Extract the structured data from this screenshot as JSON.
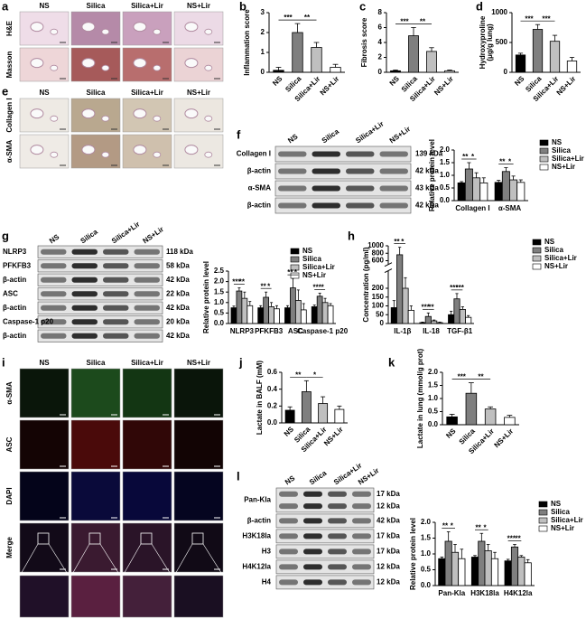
{
  "figure": {
    "a": {
      "letter": "a",
      "columns": [
        "NS",
        "Silica",
        "Silica+Lir",
        "NS+Lir"
      ],
      "rows": [
        "H&E",
        "Masson"
      ]
    },
    "e": {
      "letter": "e",
      "columns": [
        "NS",
        "Silica",
        "Silica+Lir",
        "NS+Lir"
      ],
      "rows": [
        "Collagen I",
        "α-SMA"
      ]
    },
    "f": {
      "letter": "f",
      "lanes": [
        "NS",
        "Silica",
        "Silica+Lir",
        "NS+Lir"
      ],
      "rows": [
        {
          "label": "Collagen I",
          "kda": [
            "139 kDa"
          ]
        },
        {
          "label": "β-actin",
          "kda": [
            "42 kDa"
          ]
        },
        {
          "label": "α-SMA",
          "kda": [
            "43 kDa"
          ]
        },
        {
          "label": "β-actin",
          "kda": [
            "42 kDa"
          ]
        }
      ]
    },
    "g": {
      "letter": "g",
      "lanes": [
        "NS",
        "Silica",
        "Silica+Lir",
        "NS+Lir"
      ],
      "rows": [
        {
          "label": "NLRP3",
          "kda": [
            "118 kDa"
          ]
        },
        {
          "label": "PFKFB3",
          "kda": [
            "58 kDa"
          ]
        },
        {
          "label": "β-actin",
          "kda": [
            "42 kDa"
          ]
        },
        {
          "label": "ASC",
          "kda": [
            "22 kDa"
          ]
        },
        {
          "label": "β-actin",
          "kda": [
            "42 kDa"
          ]
        },
        {
          "label": "Caspase-1 p20",
          "kda": [
            "20 kDa"
          ]
        },
        {
          "label": "β-actin",
          "kda": [
            "42 kDa"
          ]
        }
      ]
    },
    "i": {
      "letter": "i",
      "columns": [
        "NS",
        "Silica",
        "Silica+Lir",
        "NS+Lir"
      ],
      "rows": [
        {
          "label": "α-SMA",
          "color": "#2fbf2f"
        },
        {
          "label": "ASC",
          "color": "#e02020"
        },
        {
          "label": "DAPI",
          "color": "#2020d0"
        },
        {
          "label": "Merge",
          "color": "#000000"
        }
      ]
    },
    "l": {
      "letter": "l",
      "lanes": [
        "NS",
        "Silica",
        "Silica+Lir",
        "NS+Lir"
      ],
      "rows": [
        {
          "label": "Pan-Kla",
          "kda": [
            "17 kDa",
            "12 kDa"
          ]
        },
        {
          "label": "β-actin",
          "kda": [
            "42 kDa"
          ]
        },
        {
          "label": "H3K18la",
          "kda": [
            "17 kDa"
          ]
        },
        {
          "label": "H3",
          "kda": [
            "17 kDa"
          ]
        },
        {
          "label": "H4K12la",
          "kda": [
            "12 kDa"
          ]
        },
        {
          "label": "H4",
          "kda": [
            "12 kDa"
          ]
        }
      ]
    }
  },
  "chart_data": [
    {
      "panel": "b",
      "type": "bar",
      "ylabel": "Inflammation score",
      "categories": [
        "NS",
        "Silica",
        "Silica+Lir",
        "NS+Lir"
      ],
      "colors": [
        "#000000",
        "#7f7f7f",
        "#bfbfbf",
        "#ffffff"
      ],
      "values": [
        0.1,
        2.0,
        1.25,
        0.25
      ],
      "errors": [
        0.15,
        0.45,
        0.25,
        0.15
      ],
      "ylim": [
        0,
        3
      ],
      "yticks": [
        0,
        1,
        2,
        3
      ],
      "annotations": [
        {
          "text": "***",
          "between": [
            "NS",
            "Silica"
          ]
        },
        {
          "text": "**",
          "between": [
            "Silica",
            "Silica+Lir"
          ]
        }
      ]
    },
    {
      "panel": "c",
      "type": "bar",
      "ylabel": "Fibrosis score",
      "categories": [
        "NS",
        "Silica",
        "Silica+Lir",
        "NS+Lir"
      ],
      "colors": [
        "#000000",
        "#7f7f7f",
        "#bfbfbf",
        "#ffffff"
      ],
      "values": [
        0.2,
        4.9,
        2.8,
        0.2
      ],
      "errors": [
        0.1,
        1.1,
        0.5,
        0.1
      ],
      "ylim": [
        0,
        8
      ],
      "yticks": [
        0,
        2,
        4,
        6,
        8
      ],
      "annotations": [
        {
          "text": "***",
          "between": [
            "NS",
            "Silica"
          ]
        },
        {
          "text": "**",
          "between": [
            "Silica",
            "Silica+Lir"
          ]
        }
      ]
    },
    {
      "panel": "d",
      "type": "bar",
      "ylabel": [
        "Hydroxyproline",
        "(μg/g lung)"
      ],
      "categories": [
        "NS",
        "Silica",
        "Silica+Lir",
        "NS+Lir"
      ],
      "colors": [
        "#000000",
        "#7f7f7f",
        "#bfbfbf",
        "#ffffff"
      ],
      "values": [
        290,
        720,
        520,
        190
      ],
      "errors": [
        30,
        80,
        100,
        60
      ],
      "ylim": [
        0,
        1000
      ],
      "yticks": [
        0,
        500,
        1000
      ],
      "annotations": [
        {
          "text": "***",
          "between": [
            "NS",
            "Silica"
          ]
        },
        {
          "text": "***",
          "between": [
            "Silica",
            "Silica+Lir"
          ]
        }
      ]
    },
    {
      "type": "bar",
      "ylabel": "Relative protein level",
      "categories": [
        "Collagen I",
        "α-SMA"
      ],
      "legend": true,
      "series": [
        {
          "name": "NS",
          "color": "#000000",
          "values": [
            0.7,
            0.72
          ],
          "errors": [
            0.05,
            0.08
          ]
        },
        {
          "name": "Silica",
          "color": "#7f7f7f",
          "values": [
            1.25,
            1.15
          ],
          "errors": [
            0.25,
            0.15
          ]
        },
        {
          "name": "Silica+Lir",
          "color": "#bfbfbf",
          "values": [
            0.9,
            0.82
          ],
          "errors": [
            0.2,
            0.15
          ]
        },
        {
          "name": "NS+Lir",
          "color": "#ffffff",
          "values": [
            0.7,
            0.72
          ],
          "errors": [
            0.2,
            0.1
          ]
        }
      ],
      "ylim": [
        0,
        2
      ],
      "yticks": [
        {
          "value": 0,
          "label": "0.0"
        },
        0.5,
        {
          "value": 1,
          "label": "1.0"
        },
        1.5,
        {
          "value": 2,
          "label": "2.0"
        }
      ],
      "annotations": [
        {
          "text": "**",
          "group": "Collagen I",
          "between": [
            "NS",
            "Silica"
          ]
        },
        {
          "text": "*",
          "group": "Collagen I",
          "between": [
            "Silica",
            "Silica+Lir"
          ]
        },
        {
          "text": "**",
          "group": "α-SMA",
          "between": [
            "NS",
            "Silica"
          ]
        },
        {
          "text": "*",
          "group": "α-SMA",
          "between": [
            "Silica",
            "Silica+Lir"
          ]
        }
      ]
    },
    {
      "type": "bar",
      "ylabel": "Relative protein level",
      "categories": [
        "NLRP3",
        "PFKFB3",
        "ASC",
        "Caspase-1 p20"
      ],
      "legend": true,
      "series": [
        {
          "name": "NS",
          "color": "#000000",
          "values": [
            0.75,
            0.75,
            0.75,
            0.8
          ],
          "errors": [
            0.08,
            0.1,
            0.1,
            0.08
          ]
        },
        {
          "name": "Silica",
          "color": "#7f7f7f",
          "values": [
            1.55,
            1.25,
            1.7,
            1.3
          ],
          "errors": [
            0.15,
            0.25,
            0.45,
            0.15
          ]
        },
        {
          "name": "Silica+Lir",
          "color": "#bfbfbf",
          "values": [
            1.2,
            0.8,
            1.1,
            1.0
          ],
          "errors": [
            0.3,
            0.2,
            0.5,
            0.2
          ]
        },
        {
          "name": "NS+Lir",
          "color": "#ffffff",
          "values": [
            0.85,
            0.7,
            0.65,
            0.85
          ],
          "errors": [
            0.2,
            0.15,
            0.3,
            0.1
          ]
        }
      ],
      "ylim": [
        0,
        2.5
      ],
      "yticks": [
        {
          "value": 0,
          "label": "0.0"
        },
        0.5,
        {
          "value": 1,
          "label": "1.0"
        },
        1.5,
        {
          "value": 2,
          "label": "2.0"
        },
        2.5
      ],
      "annotations": [
        {
          "text": "***",
          "group": "NLRP3",
          "between": [
            "NS",
            "Silica"
          ]
        },
        {
          "text": "**",
          "group": "NLRP3",
          "between": [
            "Silica",
            "Silica+Lir"
          ]
        },
        {
          "text": "**",
          "group": "PFKFB3",
          "between": [
            "NS",
            "Silica"
          ]
        },
        {
          "text": "*",
          "group": "PFKFB3",
          "between": [
            "Silica",
            "Silica+Lir"
          ]
        },
        {
          "text": "**",
          "group": "ASC",
          "between": [
            "NS",
            "Silica"
          ]
        },
        {
          "text": "*",
          "group": "ASC",
          "between": [
            "Silica",
            "Silica+Lir"
          ]
        },
        {
          "text": "***",
          "group": "Caspase-1 p20",
          "between": [
            "NS",
            "Silica"
          ]
        },
        {
          "text": "*",
          "group": "Caspase-1 p20",
          "between": [
            "Silica",
            "Silica+Lir"
          ]
        }
      ]
    },
    {
      "panel": "h",
      "type": "bar",
      "ylabel": "Concentration (pg/ml)",
      "categories": [
        "IL-1β",
        "IL-18",
        "TGF-β1"
      ],
      "legend": true,
      "series": [
        {
          "name": "NS",
          "color": "#000000",
          "values": [
            90,
            5,
            50
          ],
          "errors": [
            40,
            3,
            20
          ]
        },
        {
          "name": "Silica",
          "color": "#7f7f7f",
          "values": [
            760,
            40,
            140
          ],
          "errors": [
            200,
            20,
            30
          ]
        },
        {
          "name": "Silica+Lir",
          "color": "#bfbfbf",
          "values": [
            200,
            15,
            80
          ],
          "errors": [
            60,
            5,
            15
          ]
        },
        {
          "name": "NS+Lir",
          "color": "#ffffff",
          "values": [
            75,
            5,
            35
          ],
          "errors": [
            25,
            3,
            10
          ]
        }
      ],
      "ylim": [
        0,
        1000
      ],
      "y_break": [
        300,
        500
      ],
      "yticks": [
        0,
        50,
        100,
        150,
        200,
        600,
        800,
        1000
      ],
      "annotations": [
        {
          "text": "**",
          "group": "IL-1β",
          "between": [
            "NS",
            "Silica"
          ]
        },
        {
          "text": "*",
          "group": "IL-1β",
          "between": [
            "Silica",
            "Silica+Lir"
          ]
        },
        {
          "text": "***",
          "group": "IL-18",
          "between": [
            "NS",
            "Silica"
          ]
        },
        {
          "text": "**",
          "group": "IL-18",
          "between": [
            "Silica",
            "Silica+Lir"
          ]
        },
        {
          "text": "***",
          "group": "TGF-β1",
          "between": [
            "NS",
            "Silica"
          ]
        },
        {
          "text": "***",
          "group": "TGF-β1",
          "between": [
            "Silica",
            "Silica+Lir"
          ]
        }
      ]
    },
    {
      "panel": "j",
      "type": "bar",
      "ylabel": "Lactate in BALF (mM)",
      "categories": [
        "NS",
        "Silica",
        "Silica+Lir",
        "NS+Lir"
      ],
      "colors": [
        "#000000",
        "#7f7f7f",
        "#bfbfbf",
        "#ffffff"
      ],
      "values": [
        0.15,
        0.37,
        0.23,
        0.16
      ],
      "errors": [
        0.04,
        0.13,
        0.08,
        0.04
      ],
      "ylim": [
        0,
        0.6
      ],
      "yticks": [
        {
          "value": 0,
          "label": "0.0"
        },
        0.2,
        0.4,
        0.6
      ],
      "annotations": [
        {
          "text": "**",
          "between": [
            "NS",
            "Silica"
          ]
        },
        {
          "text": "*",
          "between": [
            "Silica",
            "Silica+Lir"
          ]
        }
      ]
    },
    {
      "panel": "k",
      "type": "bar",
      "ylabel": "Lactate in lung (mmol/g prot)",
      "categories": [
        "NS",
        "Silica",
        "Silica+Lir",
        "NS+Lir"
      ],
      "colors": [
        "#000000",
        "#7f7f7f",
        "#bfbfbf",
        "#ffffff"
      ],
      "values": [
        0.3,
        1.2,
        0.6,
        0.28
      ],
      "errors": [
        0.1,
        0.4,
        0.08,
        0.08
      ],
      "ylim": [
        0,
        2
      ],
      "yticks": [
        {
          "value": 0,
          "label": "0.0"
        },
        0.5,
        {
          "value": 1,
          "label": "1.0"
        },
        1.5,
        {
          "value": 2,
          "label": "2.0"
        }
      ],
      "annotations": [
        {
          "text": "***",
          "between": [
            "NS",
            "Silica"
          ]
        },
        {
          "text": "**",
          "between": [
            "Silica",
            "Silica+Lir"
          ]
        }
      ]
    },
    {
      "type": "bar",
      "ylabel": "Relative protein level",
      "categories": [
        "Pan-Kla",
        "H3K18la",
        "H4K12la"
      ],
      "legend": true,
      "series": [
        {
          "name": "NS",
          "color": "#000000",
          "values": [
            0.85,
            0.9,
            0.78
          ],
          "errors": [
            0.05,
            0.05,
            0.05
          ]
        },
        {
          "name": "Silica",
          "color": "#7f7f7f",
          "values": [
            1.4,
            1.4,
            1.22
          ],
          "errors": [
            0.3,
            0.25,
            0.08
          ]
        },
        {
          "name": "Silica+Lir",
          "color": "#bfbfbf",
          "values": [
            1.05,
            1.1,
            0.9
          ],
          "errors": [
            0.25,
            0.2,
            0.05
          ]
        },
        {
          "name": "NS+Lir",
          "color": "#ffffff",
          "values": [
            0.85,
            0.85,
            0.72
          ],
          "errors": [
            0.3,
            0.2,
            0.1
          ]
        }
      ],
      "ylim": [
        0,
        2
      ],
      "yticks": [
        {
          "value": 0,
          "label": "0.0"
        },
        0.5,
        {
          "value": 1,
          "label": "1.0"
        },
        1.5,
        {
          "value": 2,
          "label": "2.0"
        }
      ],
      "annotations": [
        {
          "text": "**",
          "group": "Pan-Kla",
          "between": [
            "NS",
            "Silica"
          ]
        },
        {
          "text": "*",
          "group": "Pan-Kla",
          "between": [
            "Silica",
            "Silica+Lir"
          ]
        },
        {
          "text": "**",
          "group": "H3K18la",
          "between": [
            "NS",
            "Silica"
          ]
        },
        {
          "text": "*",
          "group": "H3K18la",
          "between": [
            "Silica",
            "Silica+Lir"
          ]
        },
        {
          "text": "***",
          "group": "H4K12la",
          "between": [
            "NS",
            "Silica"
          ]
        },
        {
          "text": "**",
          "group": "H4K12la",
          "between": [
            "Silica",
            "Silica+Lir"
          ]
        }
      ]
    }
  ]
}
